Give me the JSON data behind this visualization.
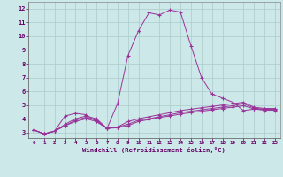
{
  "xlabel": "Windchill (Refroidissement éolien,°C)",
  "background_color": "#cce8e8",
  "grid_color": "#aacccc",
  "line_color": "#993399",
  "xlim": [
    -0.5,
    23.5
  ],
  "ylim": [
    2.6,
    12.5
  ],
  "yticks": [
    3,
    4,
    5,
    6,
    7,
    8,
    9,
    10,
    11,
    12
  ],
  "xticks": [
    0,
    1,
    2,
    3,
    4,
    5,
    6,
    7,
    8,
    9,
    10,
    11,
    12,
    13,
    14,
    15,
    16,
    17,
    18,
    19,
    20,
    21,
    22,
    23
  ],
  "series": [
    {
      "x": [
        0,
        1,
        2,
        3,
        4,
        5,
        6,
        7,
        8,
        9,
        10,
        11,
        12,
        13,
        14,
        15,
        16,
        17,
        18,
        19,
        20,
        21,
        22,
        23
      ],
      "y": [
        3.2,
        2.9,
        3.1,
        4.2,
        4.4,
        4.3,
        3.8,
        3.3,
        5.1,
        8.6,
        10.4,
        11.7,
        11.55,
        11.9,
        11.75,
        9.3,
        7.0,
        5.8,
        5.5,
        5.2,
        4.6,
        4.7,
        4.7,
        4.7
      ]
    },
    {
      "x": [
        0,
        1,
        2,
        3,
        4,
        5,
        6,
        7,
        8,
        9,
        10,
        11,
        12,
        13,
        14,
        15,
        16,
        17,
        18,
        19,
        20,
        21,
        22,
        23
      ],
      "y": [
        3.2,
        2.9,
        3.1,
        3.6,
        4.0,
        4.2,
        4.0,
        3.3,
        3.4,
        3.8,
        4.0,
        4.15,
        4.3,
        4.45,
        4.6,
        4.7,
        4.8,
        4.9,
        5.0,
        5.1,
        5.2,
        4.85,
        4.75,
        4.75
      ]
    },
    {
      "x": [
        0,
        1,
        2,
        3,
        4,
        5,
        6,
        7,
        8,
        9,
        10,
        11,
        12,
        13,
        14,
        15,
        16,
        17,
        18,
        19,
        20,
        21,
        22,
        23
      ],
      "y": [
        3.2,
        2.9,
        3.1,
        3.5,
        3.9,
        4.1,
        3.9,
        3.3,
        3.4,
        3.6,
        3.9,
        4.0,
        4.15,
        4.3,
        4.45,
        4.55,
        4.65,
        4.75,
        4.85,
        4.95,
        5.1,
        4.78,
        4.68,
        4.68
      ]
    },
    {
      "x": [
        0,
        1,
        2,
        3,
        4,
        5,
        6,
        7,
        8,
        9,
        10,
        11,
        12,
        13,
        14,
        15,
        16,
        17,
        18,
        19,
        20,
        21,
        22,
        23
      ],
      "y": [
        3.2,
        2.9,
        3.1,
        3.5,
        3.8,
        4.0,
        3.8,
        3.3,
        3.35,
        3.5,
        3.8,
        3.95,
        4.1,
        4.2,
        4.35,
        4.45,
        4.55,
        4.65,
        4.75,
        4.85,
        4.95,
        4.72,
        4.62,
        4.62
      ]
    }
  ]
}
